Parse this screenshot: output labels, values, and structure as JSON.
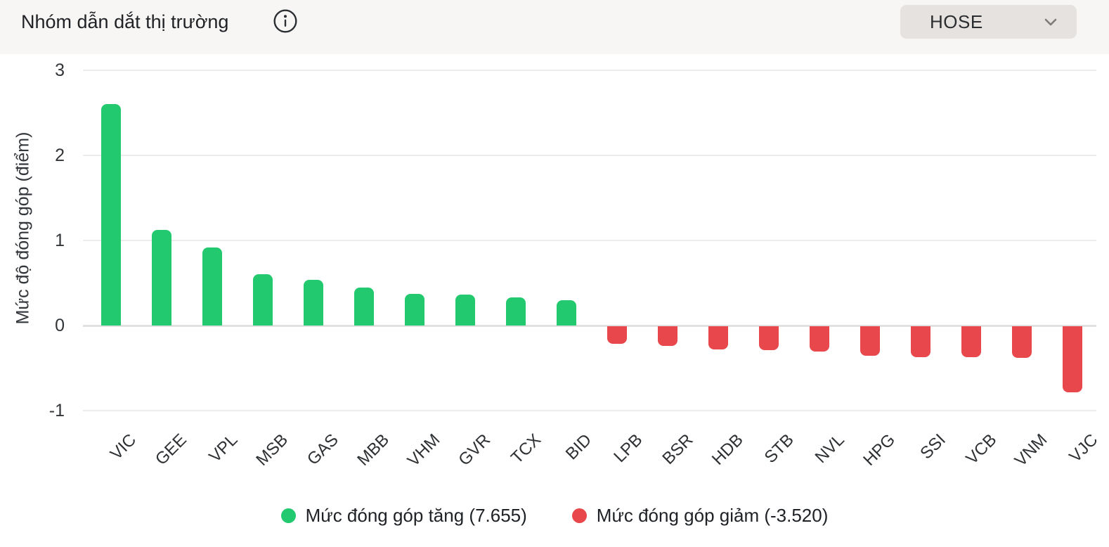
{
  "header": {
    "title": "Nhóm dẫn dắt thị trường",
    "info_icon": "info-circle-icon",
    "exchange_selector": {
      "value": "HOSE",
      "chevron_icon": "chevron-down-icon"
    }
  },
  "chart_data": {
    "type": "bar",
    "title": "Nhóm dẫn dắt thị trường",
    "xlabel": "",
    "ylabel": "Mức độ đóng góp (điểm)",
    "ylim": [
      -1,
      3
    ],
    "yticks": [
      3,
      2,
      1,
      0,
      -1
    ],
    "grid": true,
    "categories": [
      "VIC",
      "GEE",
      "VPL",
      "MSB",
      "GAS",
      "MBB",
      "VHM",
      "GVR",
      "TCX",
      "BID",
      "LPB",
      "BSR",
      "HDB",
      "STB",
      "NVL",
      "HPG",
      "SSI",
      "VCB",
      "VNM",
      "VJC"
    ],
    "values": [
      2.6,
      1.12,
      0.92,
      0.6,
      0.54,
      0.45,
      0.37,
      0.36,
      0.33,
      0.3,
      -0.21,
      -0.23,
      -0.27,
      -0.28,
      -0.3,
      -0.35,
      -0.36,
      -0.36,
      -0.37,
      -0.78
    ],
    "colors": {
      "positive": "#22c96e",
      "negative": "#e8484b"
    },
    "legend_position": "bottom",
    "legend": [
      {
        "label": "Mức đóng góp tăng (7.655)",
        "color": "#22c96e"
      },
      {
        "label": "Mức đóng góp giảm (-3.520)",
        "color": "#e8484b"
      }
    ]
  }
}
